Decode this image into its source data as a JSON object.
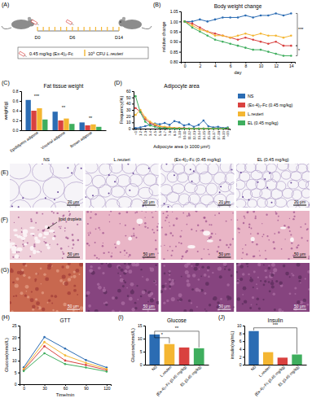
{
  "panel_labels": [
    "(A)",
    "(B)",
    "(C)",
    "(D)",
    "(E)",
    "(F)",
    "(G)",
    "(H)",
    "(I)",
    "(J)"
  ],
  "schematic": {
    "dose": "0.45 mg/kg",
    "drug": "(Ex-4)₂-Fc",
    "cfu": "10⁹ CFU",
    "bacteria": "L.reuteri",
    "days": [
      "D0",
      "D6",
      "D14"
    ]
  },
  "histology": {
    "groups": [
      "NS",
      "L.reuteri",
      "(Ex-4)₂-Fc (0.45 mg/kg)",
      "EL (0.45 mg/kg)"
    ],
    "rows": [
      {
        "scale_bar": "20 μm"
      },
      {
        "scale_bar": "50 μm"
      },
      {
        "scale_bar": "50 μm"
      }
    ],
    "annotation": "lipid droplets"
  },
  "chart_data": [
    {
      "type": "line",
      "title": "Body weight change",
      "xlabel": "day",
      "ylabel": "relative change",
      "marker": "circle",
      "x": [
        0,
        1,
        2,
        3,
        4,
        5,
        6,
        7,
        8,
        9,
        10,
        11,
        12,
        13,
        14
      ],
      "xlim": [
        -0.5,
        14.5
      ],
      "xticks": [
        0,
        2,
        4,
        6,
        8,
        10,
        12,
        14
      ],
      "ylim": [
        0.8,
        1.05
      ],
      "yticks": [
        {
          "value": 0.8,
          "label": "0.80"
        },
        0.85,
        {
          "value": 0.9,
          "label": "0.90"
        },
        0.95,
        {
          "value": 1,
          "label": "1.00"
        },
        1.05
      ],
      "annotations": [
        "***",
        "*"
      ],
      "series": [
        {
          "name": "NS",
          "color": "#2b6cb3",
          "values": [
            1.0,
            1.0,
            1.01,
            1.0,
            1.01,
            1.02,
            1.02,
            1.02,
            1.03,
            1.02,
            1.03,
            1.03,
            1.04,
            1.03,
            1.04
          ]
        },
        {
          "name": "(Ex-4)₂-Fc (0.45 mg/kg)",
          "color": "#d9413f",
          "values": [
            1.0,
            0.99,
            0.97,
            0.95,
            0.94,
            0.93,
            0.92,
            0.91,
            0.92,
            0.91,
            0.9,
            0.89,
            0.9,
            0.88,
            0.88
          ]
        },
        {
          "name": "L.reuteri",
          "color": "#f4b632",
          "values": [
            1.0,
            0.98,
            0.96,
            0.95,
            0.93,
            0.93,
            0.92,
            0.93,
            0.94,
            0.93,
            0.94,
            0.93,
            0.93,
            0.92,
            0.93
          ]
        },
        {
          "name": "EL (0.45 mg/kg)",
          "color": "#3fae5e",
          "values": [
            1.0,
            0.97,
            0.95,
            0.93,
            0.91,
            0.9,
            0.89,
            0.88,
            0.87,
            0.86,
            0.86,
            0.85,
            0.84,
            0.83,
            0.83
          ]
        }
      ]
    },
    {
      "type": "bar",
      "title": "Fat tissue weight",
      "ylabel": "weight(g)",
      "categories": [
        "Epididymis adipose",
        "Visceral adipose",
        "Brown adipose"
      ],
      "ylim": [
        0,
        0.8
      ],
      "yticks": [
        {
          "value": 0,
          "label": "0.0"
        },
        0.2,
        0.4,
        0.6,
        0.8
      ],
      "annotations": [
        "***",
        "**",
        "**"
      ],
      "series": [
        {
          "name": "NS",
          "color": "#2b6cb3",
          "values": [
            0.62,
            0.38,
            0.16
          ]
        },
        {
          "name": "(Ex-4)₂-Fc (0.45 mg/kg)",
          "color": "#d9413f",
          "values": [
            0.4,
            0.2,
            0.1
          ]
        },
        {
          "name": "L.reuteri",
          "color": "#f4b632",
          "values": [
            0.45,
            0.24,
            0.12
          ]
        },
        {
          "name": "EL (0.45 mg/kg)",
          "color": "#3fae5e",
          "values": [
            0.22,
            0.13,
            0.07
          ]
        }
      ]
    },
    {
      "type": "line",
      "title": "Adipocyte area",
      "xlabel": "Adipocyte area (x 1000 μm²)",
      "ylabel": "Frequency(%)",
      "marker": "circle",
      "categories": [
        "<1",
        "1-2",
        "2-3",
        "3-4",
        "4-5",
        "5-6",
        "6-7",
        "7-8",
        "8-9",
        "9-10",
        "10-11",
        "11-12",
        "12-13",
        "13-14",
        "14-15",
        "15-16",
        "16-17",
        "17-18",
        "18-19",
        ">19"
      ],
      "ylim": [
        0,
        60
      ],
      "yticks": [
        0,
        10,
        20,
        30,
        40,
        50,
        60
      ],
      "series": [
        {
          "name": "NS",
          "color": "#2b6cb3",
          "values": [
            1,
            2,
            4,
            6,
            8,
            7,
            9,
            6,
            12,
            10,
            5,
            7,
            3,
            6,
            13,
            4,
            2,
            3,
            1,
            2
          ]
        },
        {
          "name": "(Ex-4)₂-Fc (0.45 mg/kg)",
          "color": "#d9413f",
          "values": [
            33,
            27,
            15,
            9,
            5,
            3,
            2,
            2,
            1,
            1,
            1,
            0,
            0,
            0,
            0,
            0,
            0,
            0,
            0,
            1
          ]
        },
        {
          "name": "L.reuteri",
          "color": "#f4b632",
          "values": [
            22,
            30,
            18,
            11,
            7,
            4,
            3,
            2,
            1,
            1,
            0,
            0,
            0,
            0,
            0,
            0,
            0,
            0,
            0,
            1
          ]
        },
        {
          "name": "EL (0.45 mg/kg)",
          "color": "#3fae5e",
          "values": [
            52,
            26,
            11,
            5,
            3,
            1,
            1,
            0,
            0,
            0,
            0,
            0,
            0,
            0,
            0,
            0,
            0,
            0,
            0,
            1
          ]
        }
      ]
    },
    {
      "type": "line",
      "title": "GTT",
      "xlabel": "Time/min",
      "ylabel": "Glucose(mmol/L)",
      "marker": "circle",
      "x": [
        0,
        30,
        60,
        90,
        120
      ],
      "xlim": [
        -6,
        126
      ],
      "xticks": [
        0,
        30,
        60,
        90,
        120
      ],
      "ylim": [
        0,
        25
      ],
      "yticks": [
        0,
        5,
        10,
        15,
        20,
        25
      ],
      "series": [
        {
          "name": "NS",
          "color": "#2b6cb3",
          "values": [
            7.2,
            20.1,
            15.2,
            10.3,
            7.1
          ]
        },
        {
          "name": "(Ex-4)₂-Fc (0.45 mg/kg)",
          "color": "#d9413f",
          "values": [
            6.1,
            16.2,
            10.1,
            8.2,
            6.0
          ]
        },
        {
          "name": "L.reuteri",
          "color": "#f4b632",
          "values": [
            6.6,
            18.0,
            12.3,
            9.1,
            6.5
          ]
        },
        {
          "name": "EL (0.45 mg/kg)",
          "color": "#3fae5e",
          "values": [
            5.6,
            13.2,
            8.6,
            7.1,
            5.4
          ]
        }
      ]
    },
    {
      "type": "bar",
      "title": "Glucose",
      "ylabel": "Glucose(mmol/L)",
      "categories": [
        "NS",
        "L.reuteri",
        "(Ex-4)₂-Fc (0.45 mg/kg)",
        "EL (0.45 mg/kg)"
      ],
      "values": [
        11.6,
        7.9,
        6.6,
        6.3
      ],
      "colors": [
        "#2b6cb3",
        "#f4b632",
        "#d9413f",
        "#3fae5e"
      ],
      "ylim": [
        0,
        15
      ],
      "yticks": [
        0,
        5,
        10,
        15
      ],
      "annotations": [
        "*",
        "**"
      ]
    },
    {
      "type": "bar",
      "title": "Insulin",
      "ylabel": "insulin(ng/mL)",
      "categories": [
        "NS",
        "L.reuteri",
        "(Ex-4)₂-Fc (0.45 mg/kg)",
        "EL (0.45 mg/kg)"
      ],
      "values": [
        8.6,
        3.2,
        1.8,
        2.6
      ],
      "colors": [
        "#2b6cb3",
        "#f4b632",
        "#d9413f",
        "#3fae5e"
      ],
      "ylim": [
        0,
        10
      ],
      "yticks": [
        0,
        2,
        4,
        6,
        8,
        10
      ],
      "annotations": [
        "***"
      ]
    }
  ]
}
